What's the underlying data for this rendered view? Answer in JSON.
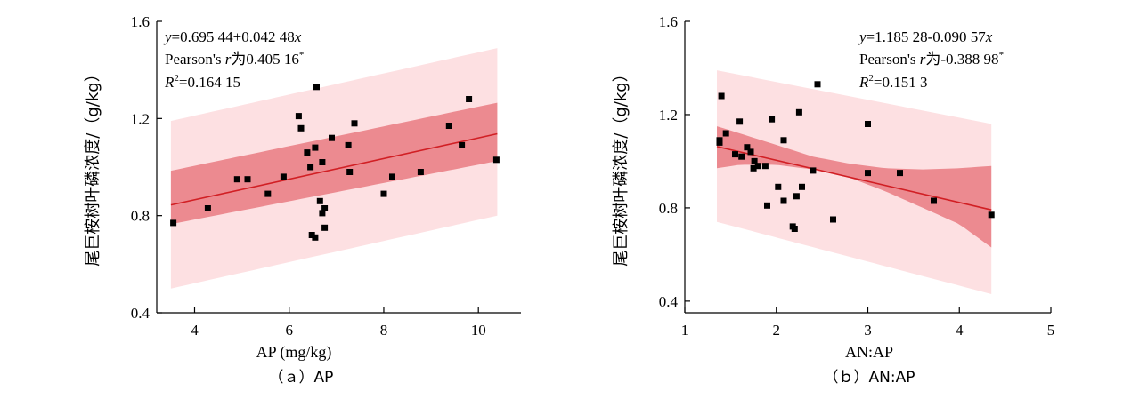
{
  "colors": {
    "band_outer": "#fde0e2",
    "band_inner": "#ec8a90",
    "fit_line": "#d11f24",
    "point": "#000000",
    "axis": "#000000"
  },
  "chart_data": [
    {
      "type": "scatter",
      "panel_caption": "（ａ）AP",
      "xlabel": "AP (mg/kg)",
      "ylabel": "尾巨桉树叶磷浓度/（g/kg）",
      "xlim": [
        3.2,
        10.9
      ],
      "ylim": [
        0.4,
        1.6
      ],
      "x_ticks": [
        4,
        6,
        8,
        10
      ],
      "x_tick_labels": [
        "4",
        "6",
        "8",
        "10"
      ],
      "y_ticks": [
        0.4,
        0.8,
        1.2,
        1.6
      ],
      "y_tick_labels": [
        "0.4",
        "0.8",
        "1.2",
        "1.6"
      ],
      "annotation": {
        "equation_y": "y",
        "equation_rest": "=0.695 44+0.042 48",
        "equation_x": "x",
        "pearson_prefix": "Pearson's ",
        "pearson_r": "r",
        "pearson_mid": "为0.405 16",
        "pearson_star": "*",
        "r2_R": "R",
        "r2_sup": "2",
        "r2_value": "=0.164 15"
      },
      "fit": {
        "intercept": 0.69544,
        "slope": 0.04248,
        "x_range": [
          3.5,
          10.4
        ]
      },
      "ci_band": {
        "x": [
          3.5,
          10.4
        ],
        "lower": [
          0.765,
          1.025
        ],
        "upper": [
          0.985,
          1.265
        ]
      },
      "pi_band": {
        "x": [
          3.5,
          10.4
        ],
        "lower": [
          0.5,
          0.8
        ],
        "upper": [
          1.19,
          1.49
        ]
      },
      "points": [
        [
          3.55,
          0.77
        ],
        [
          4.28,
          0.83
        ],
        [
          4.9,
          0.95
        ],
        [
          5.12,
          0.95
        ],
        [
          5.55,
          0.89
        ],
        [
          5.88,
          0.96
        ],
        [
          6.2,
          1.21
        ],
        [
          6.25,
          1.16
        ],
        [
          6.38,
          1.06
        ],
        [
          6.45,
          1.0
        ],
        [
          6.48,
          0.72
        ],
        [
          6.55,
          0.71
        ],
        [
          6.55,
          1.08
        ],
        [
          6.58,
          1.33
        ],
        [
          6.65,
          0.86
        ],
        [
          6.7,
          1.02
        ],
        [
          6.7,
          0.81
        ],
        [
          6.75,
          0.83
        ],
        [
          6.75,
          0.75
        ],
        [
          6.9,
          1.12
        ],
        [
          7.25,
          1.09
        ],
        [
          7.28,
          0.98
        ],
        [
          7.38,
          1.18
        ],
        [
          8.0,
          0.89
        ],
        [
          8.18,
          0.96
        ],
        [
          8.78,
          0.98
        ],
        [
          9.38,
          1.17
        ],
        [
          9.65,
          1.09
        ],
        [
          9.8,
          1.28
        ],
        [
          10.38,
          1.03
        ]
      ]
    },
    {
      "type": "scatter",
      "panel_caption": "（ｂ）AN:AP",
      "xlabel": "AN:AP",
      "ylabel": "尾巨桉树叶磷浓度/（g/kg）",
      "xlim": [
        1.0,
        5.0
      ],
      "ylim": [
        0.35,
        1.6
      ],
      "x_ticks": [
        1,
        2,
        3,
        4,
        5
      ],
      "x_tick_labels": [
        "1",
        "2",
        "3",
        "4",
        "5"
      ],
      "y_ticks": [
        0.4,
        0.8,
        1.2,
        1.6
      ],
      "y_tick_labels": [
        "0.4",
        "0.8",
        "1.2",
        "1.6"
      ],
      "annotation": {
        "equation_y": "y",
        "equation_rest": "=1.185 28-0.090 57",
        "equation_x": "x",
        "pearson_prefix": "Pearson's ",
        "pearson_r": "r",
        "pearson_mid": "为-0.388 98",
        "pearson_star": "*",
        "r2_R": "R",
        "r2_sup": "2",
        "r2_value": "=0.151 3"
      },
      "fit": {
        "intercept": 1.18528,
        "slope": -0.09057,
        "x_range": [
          1.35,
          4.35
        ]
      },
      "ci_band": {
        "x": [
          1.35,
          1.6,
          2.0,
          2.4,
          2.8,
          3.2,
          3.6,
          4.0,
          4.35
        ],
        "lower": [
          0.97,
          0.985,
          0.985,
          0.965,
          0.93,
          0.87,
          0.8,
          0.73,
          0.63
        ],
        "upper": [
          1.15,
          1.12,
          1.07,
          1.02,
          0.99,
          0.97,
          0.965,
          0.97,
          0.98
        ]
      },
      "pi_band": {
        "x": [
          1.35,
          4.35
        ],
        "lower": [
          0.74,
          0.43
        ],
        "upper": [
          1.39,
          1.16
        ]
      },
      "points": [
        [
          1.38,
          1.09
        ],
        [
          1.38,
          1.08
        ],
        [
          1.4,
          1.28
        ],
        [
          1.45,
          1.12
        ],
        [
          1.55,
          1.03
        ],
        [
          1.6,
          1.17
        ],
        [
          1.62,
          1.02
        ],
        [
          1.68,
          1.06
        ],
        [
          1.72,
          1.04
        ],
        [
          1.75,
          0.97
        ],
        [
          1.76,
          1.0
        ],
        [
          1.8,
          0.98
        ],
        [
          1.88,
          0.98
        ],
        [
          1.9,
          0.81
        ],
        [
          1.95,
          1.18
        ],
        [
          2.02,
          0.89
        ],
        [
          2.08,
          1.09
        ],
        [
          2.08,
          0.83
        ],
        [
          2.18,
          0.72
        ],
        [
          2.2,
          0.71
        ],
        [
          2.22,
          0.85
        ],
        [
          2.25,
          1.21
        ],
        [
          2.28,
          0.89
        ],
        [
          2.4,
          0.96
        ],
        [
          2.45,
          1.33
        ],
        [
          2.62,
          0.75
        ],
        [
          3.0,
          1.16
        ],
        [
          3.0,
          0.95
        ],
        [
          3.35,
          0.95
        ],
        [
          3.72,
          0.83
        ],
        [
          4.35,
          0.77
        ]
      ]
    }
  ]
}
